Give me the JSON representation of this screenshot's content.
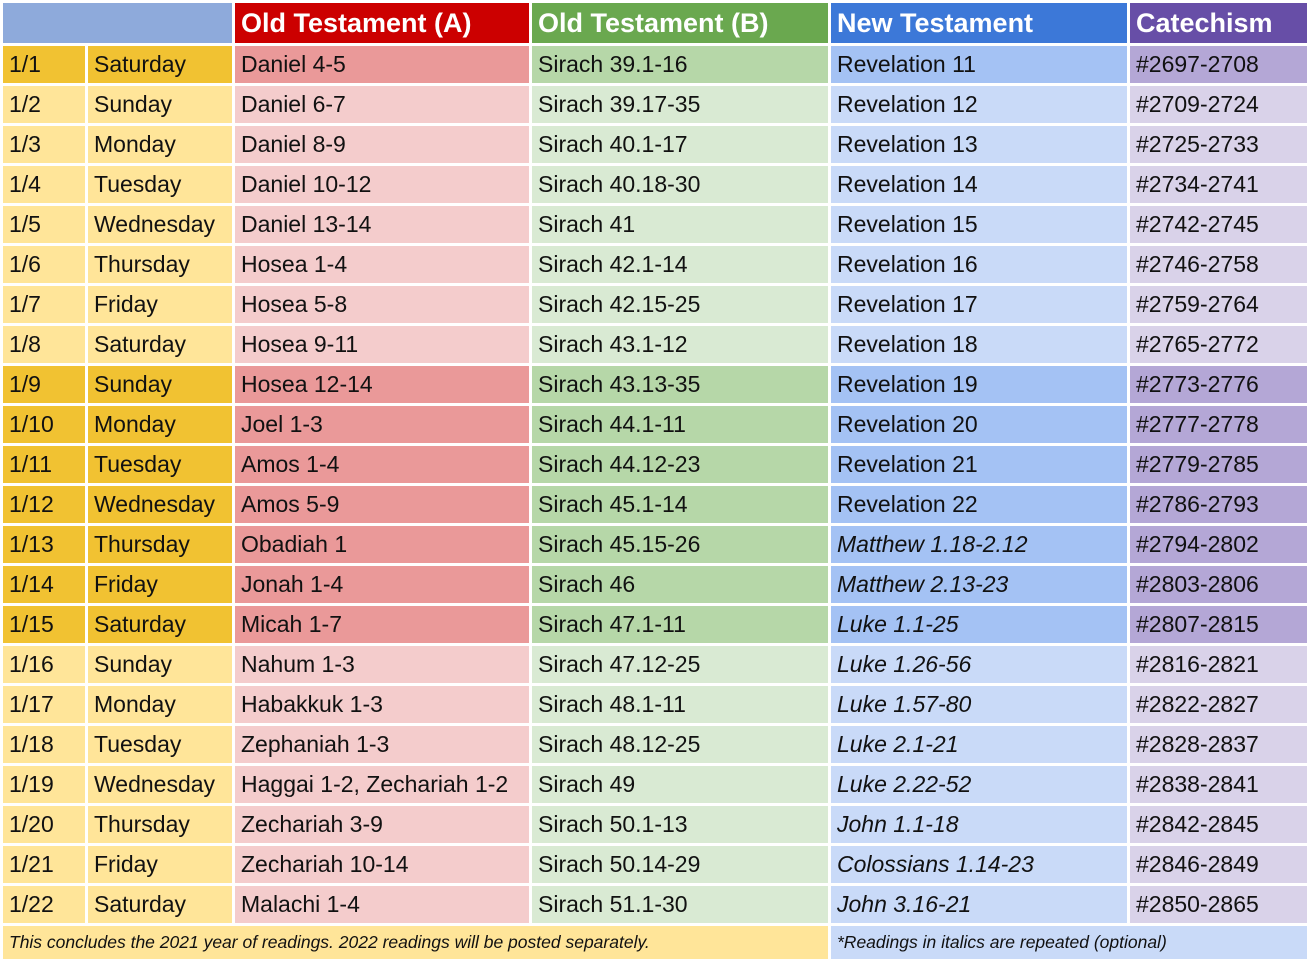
{
  "headers": {
    "ot_a": "Old Testament (A)",
    "ot_b": "Old Testament (B)",
    "nt": "New Testament",
    "catechism": "Catechism"
  },
  "colors": {
    "ot_a_header": "#cc0000",
    "ot_b_header": "#6aa84f",
    "nt_header": "#3c78d8",
    "catechism_header": "#674ea7",
    "date_header": "#8eaadb",
    "highlight_row_date": "#f1c232",
    "normal_row_date": "#ffe599"
  },
  "rows": [
    {
      "date": "1/1",
      "day": "Saturday",
      "ot_a": "Daniel 4-5",
      "ot_b": "Sirach 39.1-16",
      "nt": "Revelation 11",
      "catechism": "#2697-2708",
      "highlight": true,
      "nt_italic": false
    },
    {
      "date": "1/2",
      "day": "Sunday",
      "ot_a": "Daniel 6-7",
      "ot_b": "Sirach 39.17-35",
      "nt": "Revelation 12",
      "catechism": "#2709-2724",
      "highlight": false,
      "nt_italic": false
    },
    {
      "date": "1/3",
      "day": "Monday",
      "ot_a": "Daniel 8-9",
      "ot_b": "Sirach 40.1-17",
      "nt": "Revelation 13",
      "catechism": "#2725-2733",
      "highlight": false,
      "nt_italic": false
    },
    {
      "date": "1/4",
      "day": "Tuesday",
      "ot_a": "Daniel 10-12",
      "ot_b": "Sirach 40.18-30",
      "nt": "Revelation 14",
      "catechism": "#2734-2741",
      "highlight": false,
      "nt_italic": false
    },
    {
      "date": "1/5",
      "day": "Wednesday",
      "ot_a": "Daniel 13-14",
      "ot_b": "Sirach 41",
      "nt": "Revelation 15",
      "catechism": "#2742-2745",
      "highlight": false,
      "nt_italic": false
    },
    {
      "date": "1/6",
      "day": "Thursday",
      "ot_a": "Hosea 1-4",
      "ot_b": "Sirach 42.1-14",
      "nt": "Revelation 16",
      "catechism": "#2746-2758",
      "highlight": false,
      "nt_italic": false
    },
    {
      "date": "1/7",
      "day": "Friday",
      "ot_a": "Hosea 5-8",
      "ot_b": "Sirach 42.15-25",
      "nt": "Revelation 17",
      "catechism": "#2759-2764",
      "highlight": false,
      "nt_italic": false
    },
    {
      "date": "1/8",
      "day": "Saturday",
      "ot_a": "Hosea 9-11",
      "ot_b": "Sirach 43.1-12",
      "nt": "Revelation 18",
      "catechism": "#2765-2772",
      "highlight": false,
      "nt_italic": false
    },
    {
      "date": "1/9",
      "day": "Sunday",
      "ot_a": "Hosea 12-14",
      "ot_b": "Sirach 43.13-35",
      "nt": "Revelation 19",
      "catechism": "#2773-2776",
      "highlight": true,
      "nt_italic": false
    },
    {
      "date": "1/10",
      "day": "Monday",
      "ot_a": "Joel 1-3",
      "ot_b": "Sirach 44.1-11",
      "nt": "Revelation 20",
      "catechism": "#2777-2778",
      "highlight": true,
      "nt_italic": false
    },
    {
      "date": "1/11",
      "day": "Tuesday",
      "ot_a": "Amos 1-4",
      "ot_b": "Sirach 44.12-23",
      "nt": "Revelation 21",
      "catechism": "#2779-2785",
      "highlight": true,
      "nt_italic": false
    },
    {
      "date": "1/12",
      "day": "Wednesday",
      "ot_a": "Amos 5-9",
      "ot_b": "Sirach 45.1-14",
      "nt": "Revelation 22",
      "catechism": "#2786-2793",
      "highlight": true,
      "nt_italic": false
    },
    {
      "date": "1/13",
      "day": "Thursday",
      "ot_a": "Obadiah 1",
      "ot_b": "Sirach 45.15-26",
      "nt": "Matthew 1.18-2.12",
      "catechism": "#2794-2802",
      "highlight": true,
      "nt_italic": true
    },
    {
      "date": "1/14",
      "day": "Friday",
      "ot_a": "Jonah 1-4",
      "ot_b": "Sirach 46",
      "nt": "Matthew 2.13-23",
      "catechism": "#2803-2806",
      "highlight": true,
      "nt_italic": true
    },
    {
      "date": "1/15",
      "day": "Saturday",
      "ot_a": "Micah 1-7",
      "ot_b": "Sirach 47.1-11",
      "nt": "Luke 1.1-25",
      "catechism": "#2807-2815",
      "highlight": true,
      "nt_italic": true
    },
    {
      "date": "1/16",
      "day": "Sunday",
      "ot_a": "Nahum 1-3",
      "ot_b": "Sirach 47.12-25",
      "nt": "Luke 1.26-56",
      "catechism": "#2816-2821",
      "highlight": false,
      "nt_italic": true
    },
    {
      "date": "1/17",
      "day": "Monday",
      "ot_a": "Habakkuk 1-3",
      "ot_b": "Sirach 48.1-11",
      "nt": "Luke 1.57-80",
      "catechism": "#2822-2827",
      "highlight": false,
      "nt_italic": true
    },
    {
      "date": "1/18",
      "day": "Tuesday",
      "ot_a": "Zephaniah 1-3",
      "ot_b": "Sirach 48.12-25",
      "nt": "Luke 2.1-21",
      "catechism": "#2828-2837",
      "highlight": false,
      "nt_italic": true
    },
    {
      "date": "1/19",
      "day": "Wednesday",
      "ot_a": "Haggai 1-2, Zechariah 1-2",
      "ot_b": "Sirach 49",
      "nt": "Luke 2.22-52",
      "catechism": "#2838-2841",
      "highlight": false,
      "nt_italic": true
    },
    {
      "date": "1/20",
      "day": "Thursday",
      "ot_a": "Zechariah 3-9",
      "ot_b": "Sirach 50.1-13",
      "nt": "John 1.1-18",
      "catechism": "#2842-2845",
      "highlight": false,
      "nt_italic": true
    },
    {
      "date": "1/21",
      "day": "Friday",
      "ot_a": "Zechariah 10-14",
      "ot_b": "Sirach 50.14-29",
      "nt": "Colossians 1.14-23",
      "catechism": "#2846-2849",
      "highlight": false,
      "nt_italic": true
    },
    {
      "date": "1/22",
      "day": "Saturday",
      "ot_a": "Malachi 1-4",
      "ot_b": "Sirach 51.1-30",
      "nt": "John 3.16-21",
      "catechism": "#2850-2865",
      "highlight": false,
      "nt_italic": true
    }
  ],
  "footer": {
    "left_note": "This concludes the 2021 year of readings. 2022 readings will be posted separately.",
    "right_note": "*Readings in italics are repeated (optional)"
  }
}
